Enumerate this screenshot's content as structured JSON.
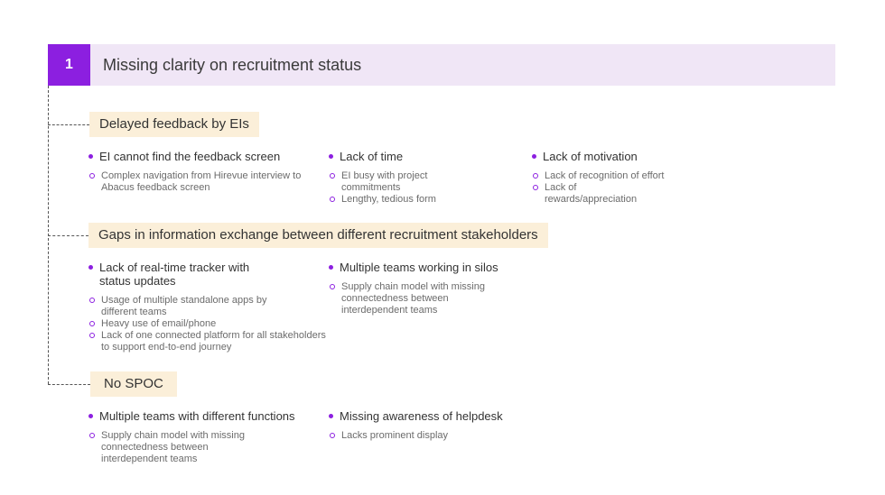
{
  "header": {
    "number": "1",
    "title": "Missing clarity on recruitment status"
  },
  "sections": [
    {
      "label": "Delayed feedback by EIs",
      "items": [
        {
          "title": "EI cannot find the feedback screen",
          "subs": [
            "Complex navigation from Hirevue interview to Abacus feedback screen"
          ]
        },
        {
          "title": "Lack of time",
          "subs": [
            "EI busy with project commitments",
            "Lengthy, tedious form"
          ]
        },
        {
          "title": "Lack of motivation",
          "subs": [
            "Lack of recognition of effort",
            "Lack of rewards/appreciation"
          ]
        }
      ]
    },
    {
      "label": "Gaps in information exchange between different recruitment stakeholders",
      "items": [
        {
          "title": "Lack of real-time tracker with status updates",
          "subs": [
            "Usage of multiple standalone apps by different teams",
            "Heavy use of email/phone",
            "Lack of one connected platform for all stakeholders to support end-to-end journey"
          ]
        },
        {
          "title": "Multiple teams working in silos",
          "subs": [
            "Supply chain model with missing connectedness between interdependent teams"
          ]
        }
      ]
    },
    {
      "label": "No SPOC",
      "items": [
        {
          "title": "Multiple teams with different functions",
          "subs": [
            "Supply chain model with missing connectedness between interdependent teams"
          ]
        },
        {
          "title": "Missing awareness of helpdesk",
          "subs": [
            "Lacks prominent display"
          ]
        }
      ]
    }
  ],
  "colors": {
    "accent": "#8c1fe0",
    "header_bg": "#f0e6f6",
    "category_bg": "#fbefd9"
  }
}
